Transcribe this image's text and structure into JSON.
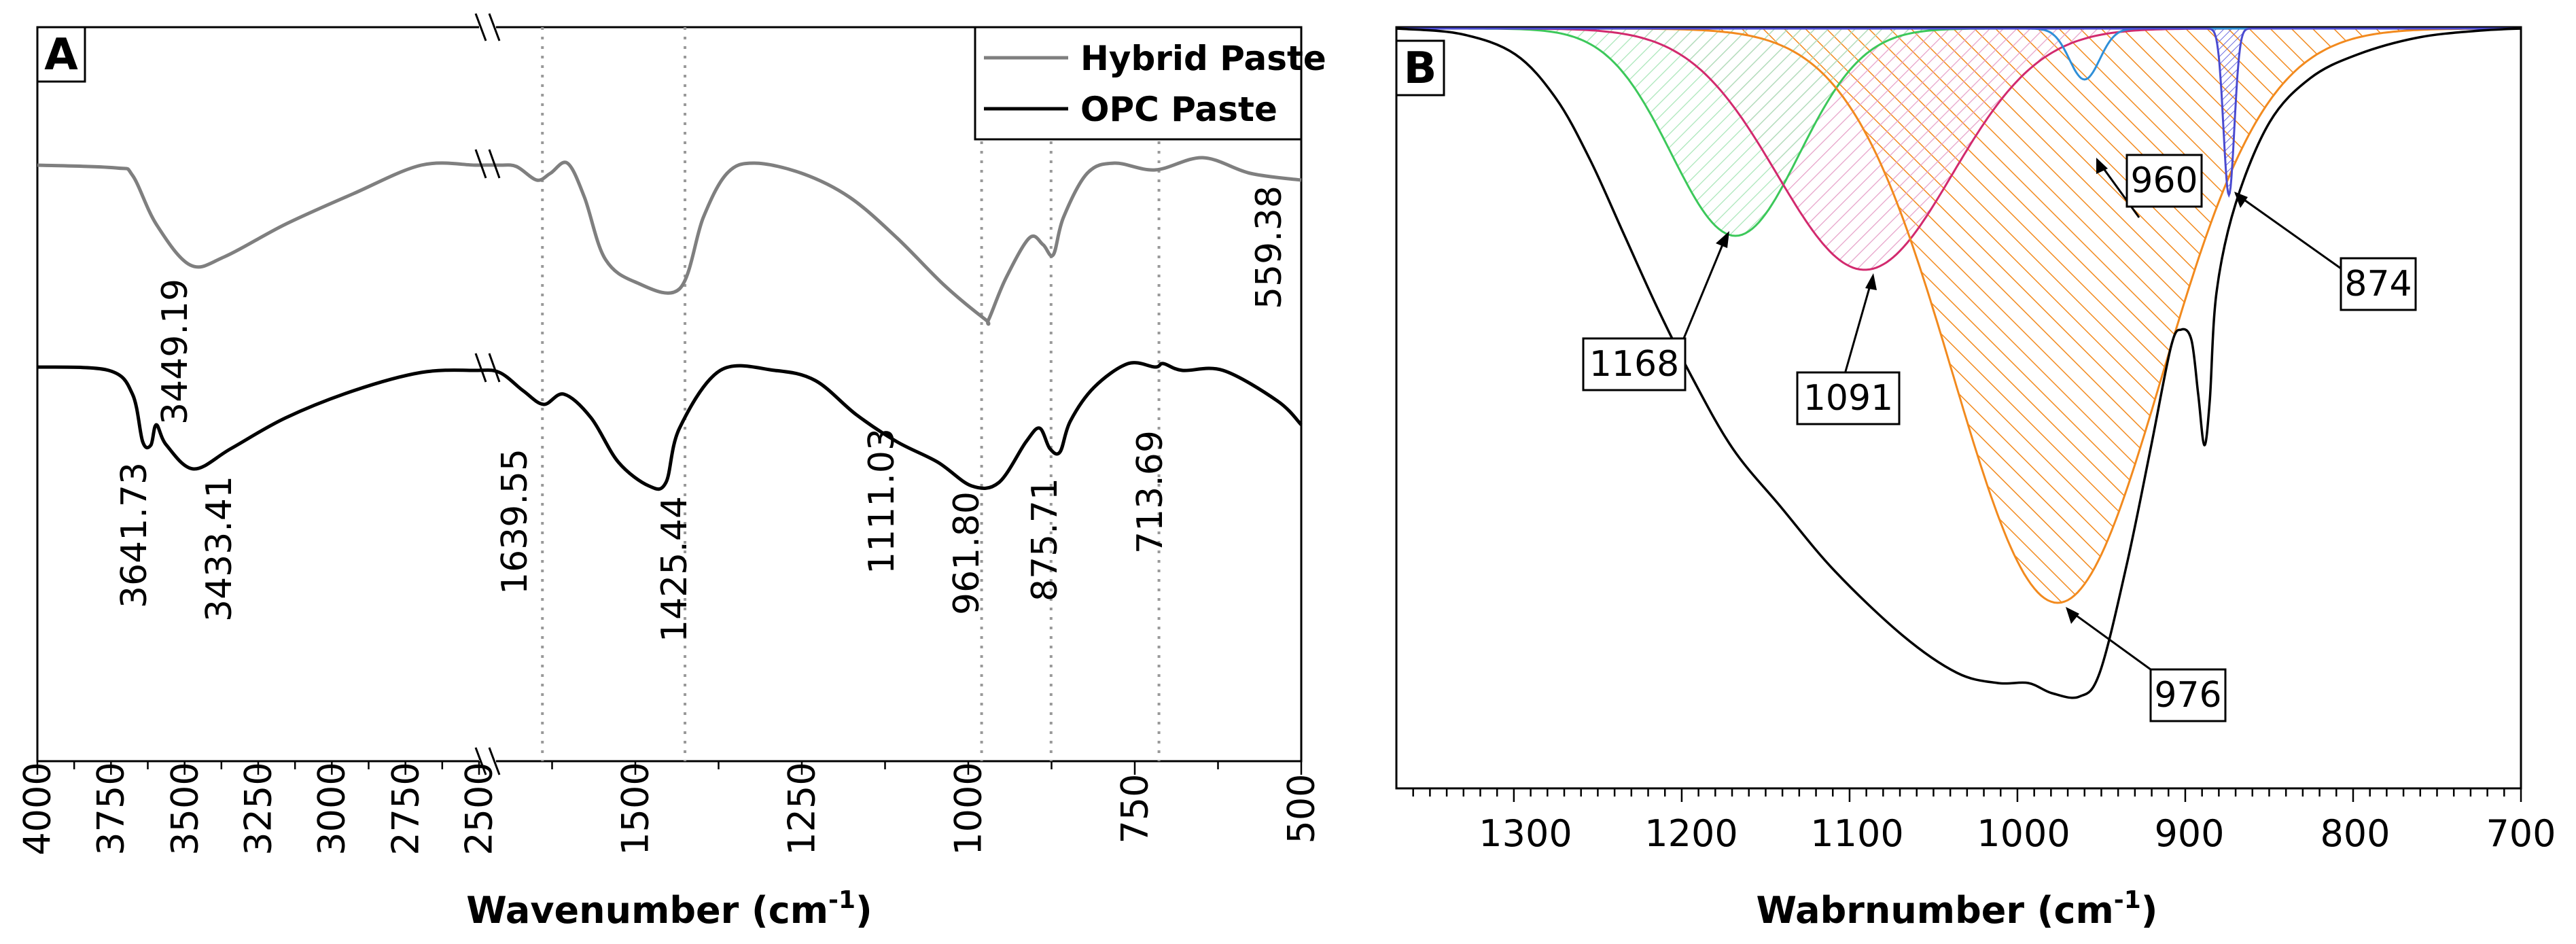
{
  "chart_data": [
    {
      "panel": "A",
      "type": "line",
      "xlabel": "Wavenumber",
      "xunit_base": "cm",
      "xunit_exp": "-1",
      "ylabel": "",
      "xlim_left": [
        4000,
        2500
      ],
      "xlim_right": [
        1750,
        500
      ],
      "ticks_left": [
        "4000",
        "3750",
        "3500",
        "3250",
        "3000",
        "2750",
        "2500"
      ],
      "ticks_right": [
        "1500",
        "1250",
        "1000",
        "750",
        "500"
      ],
      "legend": [
        "Hybrid Paste",
        "OPC Paste"
      ],
      "legend_position": "top-right",
      "series": [
        {
          "name": "Hybrid Paste",
          "color": "#7f7f7f"
        },
        {
          "name": "OPC Paste",
          "color": "#000000"
        }
      ],
      "guides": [
        1639.55,
        1425.44,
        980,
        875.71,
        713.69
      ],
      "peak_labels": [
        "3449.19",
        "559.38",
        "3641.73",
        "3433.41",
        "1639.55",
        "1425.44",
        "1111.03",
        "961.80",
        "875.71",
        "713.69"
      ]
    },
    {
      "panel": "B",
      "type": "line",
      "xlabel": "Wabrnumber",
      "xunit_base": "cm",
      "xunit_exp": "-1",
      "xlim": [
        1370,
        700
      ],
      "ticks": [
        "1300",
        "1200",
        "1100",
        "1000",
        "900",
        "800",
        "700"
      ],
      "components": [
        {
          "center": 1168,
          "label": "1168",
          "color": "#3cc85a"
        },
        {
          "center": 1091,
          "label": "1091",
          "color": "#d22a6e"
        },
        {
          "center": 976,
          "label": "976",
          "color": "#f28a1e"
        },
        {
          "center": 960,
          "label": "960",
          "color": "#2f8fd8"
        },
        {
          "center": 874,
          "label": "874",
          "color": "#4a4ad0"
        }
      ],
      "envelope_color": "#000000"
    }
  ]
}
